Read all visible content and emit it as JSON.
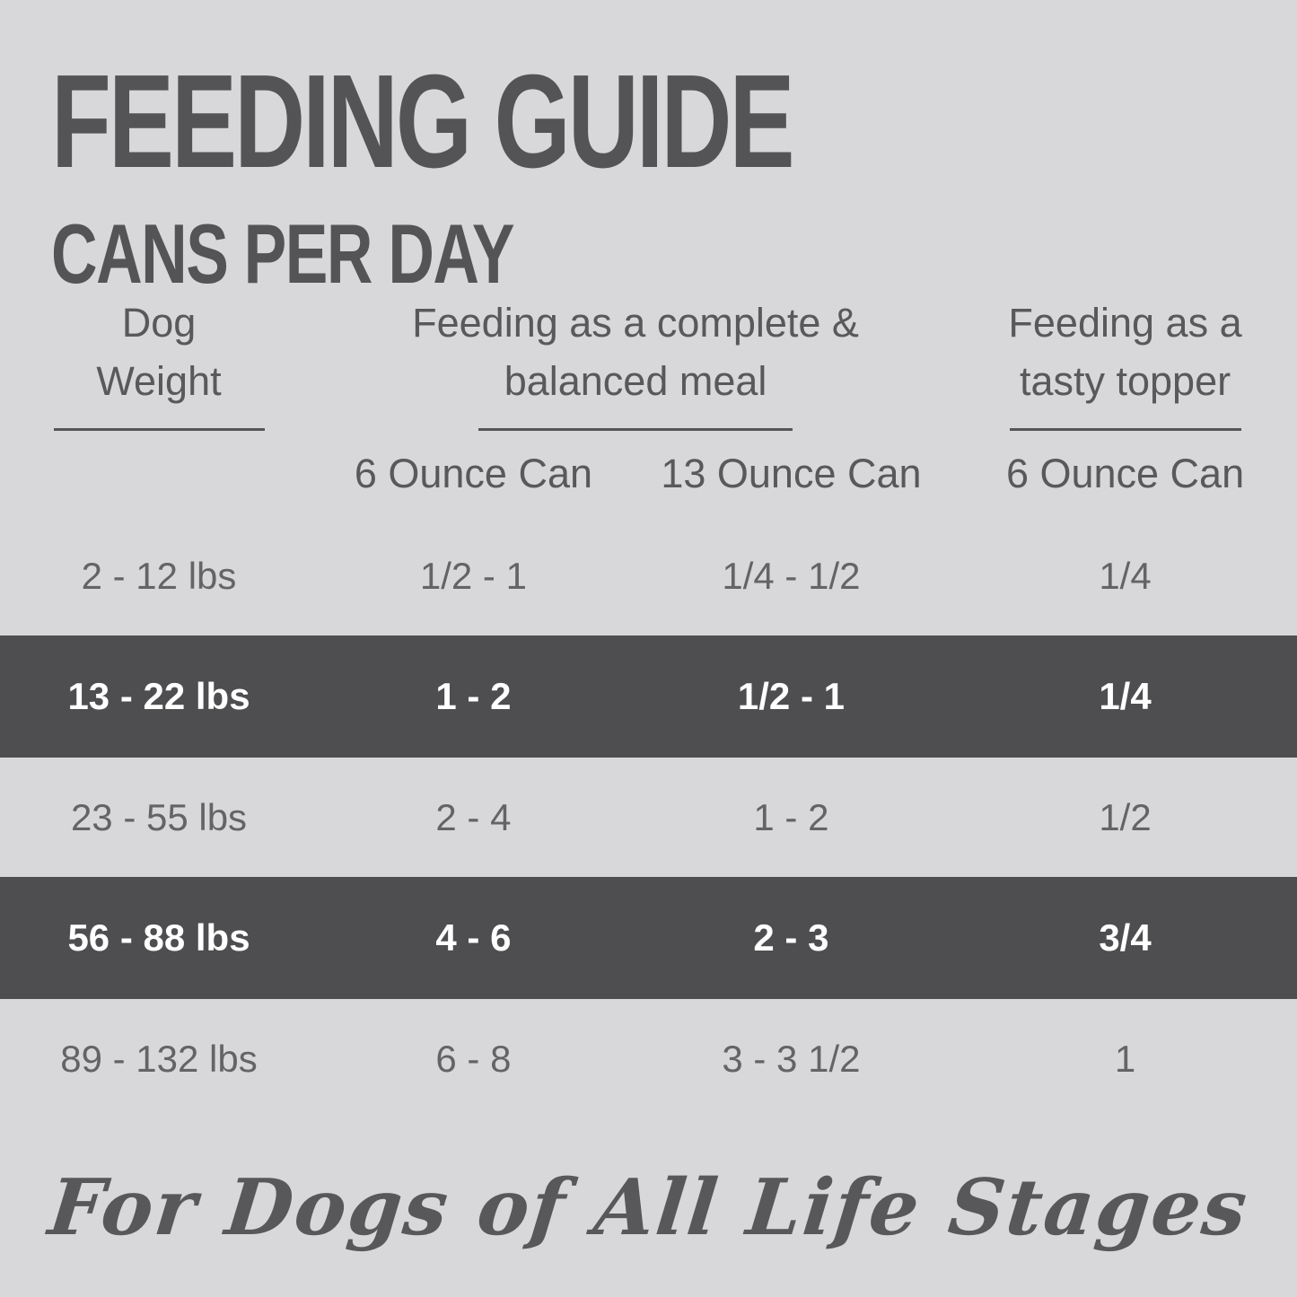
{
  "page": {
    "title": "FEEDING GUIDE",
    "subtitle": "CANS PER DAY"
  },
  "colors": {
    "background": "#d8d8da",
    "highlight_band": "#4e4e50",
    "body_text": "#646467",
    "title_text": "#545456",
    "band_text": "#ffffff"
  },
  "table": {
    "header_groups": [
      {
        "line1": "Dog",
        "line2": "Weight"
      },
      {
        "line1": "Feeding as a complete &",
        "line2": "balanced meal"
      },
      {
        "line1": "Feeding as a",
        "line2": "tasty topper"
      }
    ],
    "subheaders": [
      "6 Ounce Can",
      "13 Ounce Can",
      "6 Ounce Can"
    ]
  },
  "chart_data": {
    "type": "table",
    "title": "FEEDING GUIDE",
    "subtitle": "CANS PER DAY",
    "columns": [
      "Dog Weight",
      "Feeding as a complete & balanced meal - 6 Ounce Can",
      "Feeding as a complete & balanced meal - 13 Ounce Can",
      "Feeding as a tasty topper - 6 Ounce Can"
    ],
    "rows": [
      [
        "2 - 12 lbs",
        "1/2 - 1",
        "1/4 - 1/2",
        "1/4"
      ],
      [
        "13 - 22 lbs",
        "1 - 2",
        "1/2 - 1",
        "1/4"
      ],
      [
        "23 - 55 lbs",
        "2 - 4",
        "1 - 2",
        "1/2"
      ],
      [
        "56 - 88 lbs",
        "4 - 6",
        "2 - 3",
        "3/4"
      ],
      [
        "89 - 132 lbs",
        "6 - 8",
        "3 - 3 1/2",
        "1"
      ]
    ],
    "highlighted_rows": [
      1,
      3
    ]
  },
  "footer": {
    "tagline": "For Dogs of All Life Stages"
  }
}
